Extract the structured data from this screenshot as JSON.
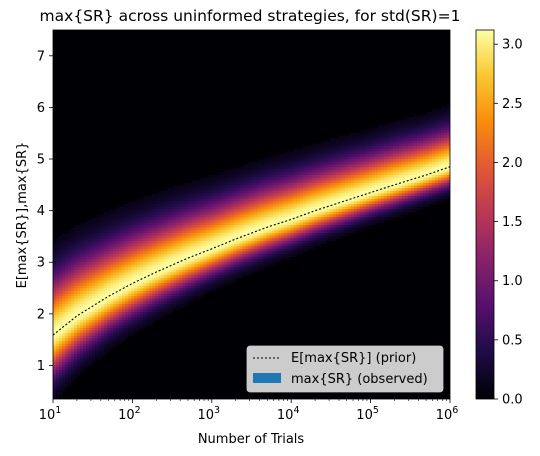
{
  "chart_data": {
    "type": "heatmap",
    "title": "max{SR} across uninformed strategies, for std(SR)=1",
    "xlabel": "Number of Trials",
    "ylabel": "E[max{SR}],max{SR}",
    "x_scale": "log",
    "xlim": [
      10,
      1000000
    ],
    "ylim": [
      0.35,
      7.5
    ],
    "x_ticks": [
      {
        "base": "10",
        "exp": "1",
        "value": 10
      },
      {
        "base": "10",
        "exp": "2",
        "value": 100
      },
      {
        "base": "10",
        "exp": "3",
        "value": 1000
      },
      {
        "base": "10",
        "exp": "4",
        "value": 10000
      },
      {
        "base": "10",
        "exp": "5",
        "value": 100000
      },
      {
        "base": "10",
        "exp": "6",
        "value": 1000000
      }
    ],
    "y_ticks": [
      1,
      2,
      3,
      4,
      5,
      6,
      7
    ],
    "colormap": "inferno",
    "colorbar": {
      "min": 0.0,
      "max": 3.12,
      "ticks": [
        "0.0",
        "0.5",
        "1.0",
        "1.5",
        "2.0",
        "2.5",
        "3.0"
      ],
      "tick_values": [
        0,
        0.5,
        1.0,
        1.5,
        2.0,
        2.5,
        3.0
      ]
    },
    "expected_max_curve": {
      "name": "E[max{SR}] (prior)",
      "style": "dotted",
      "color": "#000000",
      "x": [
        10,
        20,
        50,
        100,
        200,
        500,
        1000,
        2000,
        5000,
        10000,
        20000,
        50000,
        100000,
        200000,
        500000,
        1000000
      ],
      "y": [
        1.59,
        1.96,
        2.34,
        2.59,
        2.81,
        3.08,
        3.26,
        3.45,
        3.68,
        3.83,
        4.0,
        4.2,
        4.35,
        4.5,
        4.69,
        4.85
      ]
    },
    "observed_density": {
      "name": "max{SR} (observed)",
      "legend_color": "#1f77b4",
      "x": [
        10,
        20,
        50,
        100,
        200,
        500,
        1000,
        2000,
        5000,
        10000,
        20000,
        50000,
        100000,
        200000,
        500000,
        1000000
      ],
      "center": [
        1.6,
        1.97,
        2.35,
        2.6,
        2.82,
        3.09,
        3.27,
        3.46,
        3.69,
        3.84,
        4.01,
        4.21,
        4.36,
        4.51,
        4.7,
        4.86
      ],
      "spread_low": [
        0.45,
        0.4,
        0.36,
        0.34,
        0.32,
        0.3,
        0.28,
        0.27,
        0.26,
        0.25,
        0.24,
        0.23,
        0.22,
        0.22,
        0.21,
        0.21
      ],
      "spread_high": [
        0.62,
        0.6,
        0.56,
        0.54,
        0.52,
        0.5,
        0.48,
        0.47,
        0.46,
        0.45,
        0.44,
        0.43,
        0.42,
        0.42,
        0.41,
        0.41
      ],
      "peak_density": 3.12
    },
    "legend": {
      "placement": "lower-right",
      "entries": [
        "E[max{SR}] (prior)",
        "max{SR} (observed)"
      ]
    },
    "grid": false
  }
}
